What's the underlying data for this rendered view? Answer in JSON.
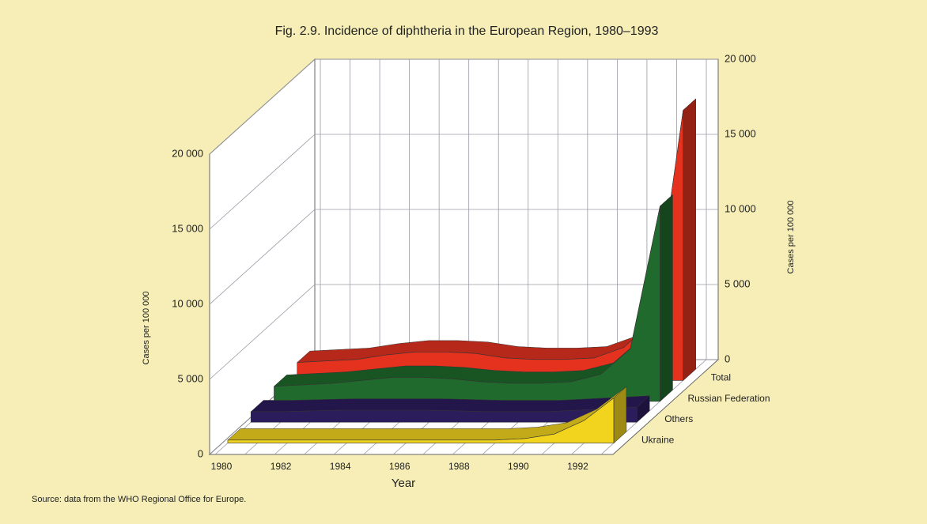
{
  "chart_data": {
    "type": "area3d",
    "title": "Fig. 2.9.  Incidence of diphtheria in the European Region, 1980–1993",
    "x_label": "Year",
    "y_label": "Cases per 100 000",
    "source": "Source:  data from the WHO Regional Office for Europe.",
    "categories": [
      "1980",
      null,
      "1982",
      null,
      "1984",
      null,
      "1986",
      null,
      "1988",
      null,
      "1990",
      null,
      "1992",
      null
    ],
    "series": [
      {
        "name": "Ukraine",
        "color": "#f2d41e",
        "values": [
          200,
          200,
          200,
          200,
          200,
          200,
          200,
          200,
          200,
          200,
          300,
          600,
          1500,
          3000
        ]
      },
      {
        "name": "Others",
        "color": "#2b1c5c",
        "values": [
          700,
          700,
          750,
          800,
          800,
          800,
          800,
          750,
          700,
          700,
          700,
          800,
          900,
          1000
        ]
      },
      {
        "name": "Russian Federation",
        "color": "#1f6a2c",
        "values": [
          1000,
          1100,
          1200,
          1400,
          1600,
          1600,
          1500,
          1300,
          1200,
          1200,
          1300,
          1800,
          3500,
          13000
        ]
      },
      {
        "name": "Total",
        "color": "#e4321f",
        "values": [
          1200,
          1300,
          1400,
          1700,
          1900,
          1900,
          1800,
          1500,
          1400,
          1400,
          1500,
          2200,
          4000,
          18000
        ]
      }
    ],
    "ylim": [
      0,
      20000
    ],
    "yticks": [
      0,
      {
        "value": 5000,
        "label": "5 000"
      },
      {
        "value": 10000,
        "label": "10 000"
      },
      {
        "value": 15000,
        "label": "15 000"
      },
      {
        "value": 20000,
        "label": "20 000"
      }
    ],
    "grid": true
  }
}
